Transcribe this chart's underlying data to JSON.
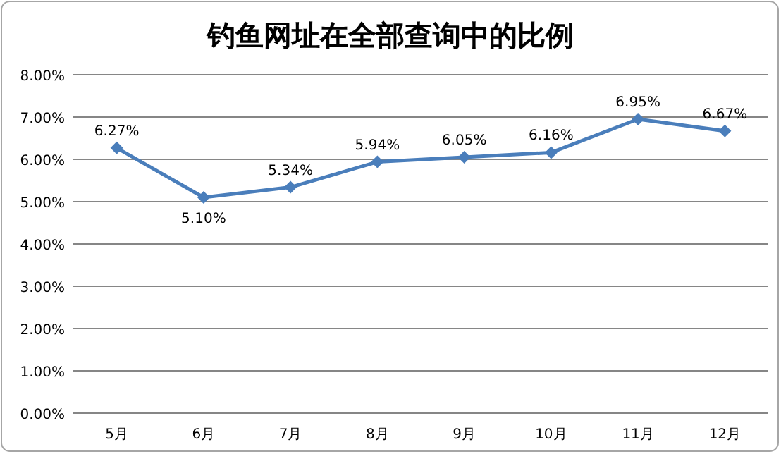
{
  "chart_data": {
    "type": "line",
    "title": "钓鱼网址在全部查询中的比例",
    "categories": [
      "5月",
      "6月",
      "7月",
      "8月",
      "9月",
      "10月",
      "11月",
      "12月"
    ],
    "series": [
      {
        "color": "#4a7ebb",
        "values": [
          6.27,
          5.1,
          5.34,
          5.94,
          6.05,
          6.16,
          6.95,
          6.67
        ],
        "value_labels": [
          "6.27%",
          "5.10%",
          "5.34%",
          "5.94%",
          "6.05%",
          "6.16%",
          "6.95%",
          "6.67%"
        ]
      }
    ],
    "ylim": [
      0,
      8
    ],
    "yticks": [
      {
        "value": 0,
        "label": "0.00%"
      },
      {
        "value": 1,
        "label": "1.00%"
      },
      {
        "value": 2,
        "label": "2.00%"
      },
      {
        "value": 3,
        "label": "3.00%"
      },
      {
        "value": 4,
        "label": "4.00%"
      },
      {
        "value": 5,
        "label": "5.00%"
      },
      {
        "value": 6,
        "label": "6.00%"
      },
      {
        "value": 7,
        "label": "7.00%"
      },
      {
        "value": 8,
        "label": "8.00%"
      }
    ],
    "grid": "y",
    "marker": "diamond",
    "line_style": "solid"
  }
}
